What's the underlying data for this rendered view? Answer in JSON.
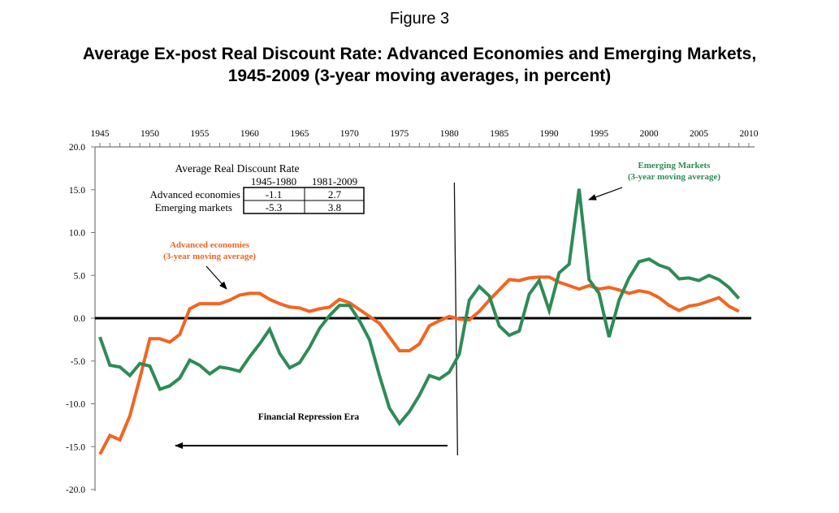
{
  "figure_label": "Figure 3",
  "title_line1": "Average Ex-post Real Discount Rate: Advanced Economies and Emerging Markets,",
  "title_line2": "1945-2009 (3-year moving averages, in percent)",
  "chart_data": {
    "type": "line",
    "title": "Average Ex-post Real Discount Rate: Advanced Economies and Emerging Markets, 1945-2009 (3-year moving averages, in percent)",
    "xlabel": "",
    "ylabel": "",
    "xlim": [
      1945,
      2010
    ],
    "ylim": [
      -20,
      20
    ],
    "x_ticks": [
      1945,
      1950,
      1955,
      1960,
      1965,
      1970,
      1975,
      1980,
      1985,
      1990,
      1995,
      2000,
      2005,
      2010
    ],
    "y_ticks": [
      "20.0",
      "15.0",
      "10.0",
      "5.0",
      "0.0",
      "-5.0",
      "-10.0",
      "-15.0",
      "-20.0"
    ],
    "x_axis_position": "top",
    "grid": false,
    "zero_line": true,
    "x": [
      1945,
      1946,
      1947,
      1948,
      1949,
      1950,
      1951,
      1952,
      1953,
      1954,
      1955,
      1956,
      1957,
      1958,
      1959,
      1960,
      1961,
      1962,
      1963,
      1964,
      1965,
      1966,
      1967,
      1968,
      1969,
      1970,
      1971,
      1972,
      1973,
      1974,
      1975,
      1976,
      1977,
      1978,
      1979,
      1980,
      1981,
      1982,
      1983,
      1984,
      1985,
      1986,
      1987,
      1988,
      1989,
      1990,
      1991,
      1992,
      1993,
      1994,
      1995,
      1996,
      1997,
      1998,
      1999,
      2000,
      2001,
      2002,
      2003,
      2004,
      2005,
      2006,
      2007,
      2008,
      2009
    ],
    "series": [
      {
        "name": "Advanced economies",
        "color": "#f26522",
        "values": [
          -15.9,
          -13.7,
          -14.2,
          -11.4,
          -7.0,
          -2.4,
          -2.4,
          -2.8,
          -1.9,
          1.1,
          1.7,
          1.7,
          1.7,
          2.1,
          2.7,
          2.9,
          2.9,
          2.2,
          1.7,
          1.3,
          1.2,
          0.8,
          1.1,
          1.3,
          2.2,
          1.8,
          1.0,
          0.2,
          -0.6,
          -2.2,
          -3.8,
          -3.8,
          -3.0,
          -0.9,
          -0.3,
          0.2,
          -0.1,
          -0.2,
          0.8,
          2.1,
          3.3,
          4.5,
          4.4,
          4.7,
          4.8,
          4.8,
          4.2,
          3.8,
          3.4,
          3.8,
          3.4,
          3.6,
          3.3,
          2.9,
          3.2,
          3.0,
          2.4,
          1.5,
          0.9,
          1.4,
          1.6,
          2.0,
          2.4,
          1.4,
          0.8
        ]
      },
      {
        "name": "Emerging Markets",
        "color": "#2e8b57",
        "values": [
          -2.2,
          -5.5,
          -5.7,
          -6.7,
          -5.3,
          -5.6,
          -8.3,
          -7.9,
          -7.0,
          -4.9,
          -5.5,
          -6.5,
          -5.7,
          -5.9,
          -6.2,
          -4.5,
          -3.0,
          -1.3,
          -4.1,
          -5.8,
          -5.2,
          -3.4,
          -1.2,
          0.3,
          1.5,
          1.5,
          -0.3,
          -2.5,
          -6.7,
          -10.5,
          -12.3,
          -10.9,
          -9.0,
          -6.7,
          -7.1,
          -6.3,
          -4.2,
          2.1,
          3.7,
          2.6,
          -0.9,
          -2.0,
          -1.5,
          2.8,
          4.4,
          0.9,
          5.3,
          6.3,
          15.1,
          4.5,
          2.9,
          -2.2,
          2.1,
          4.7,
          6.6,
          6.9,
          6.2,
          5.8,
          4.6,
          4.7,
          4.4,
          5.0,
          4.5,
          3.6,
          2.3
        ]
      }
    ],
    "annotations": {
      "advanced_label_line1": "Advanced economies",
      "advanced_label_line2": "(3-year moving average)",
      "emerging_label_line1": "Emerging Markets",
      "emerging_label_line2": "(3-year moving average)",
      "era_label": "Financial Repression Era",
      "divider_year": 1980.5
    },
    "summary_table": {
      "title": "Average Real Discount Rate",
      "columns": [
        "1945-1980",
        "1981-2009"
      ],
      "rows": [
        {
          "label": "Advanced economies",
          "values": [
            "-1.1",
            "2.7"
          ]
        },
        {
          "label": "Emerging markets",
          "values": [
            "-5.3",
            "3.8"
          ]
        }
      ]
    }
  }
}
